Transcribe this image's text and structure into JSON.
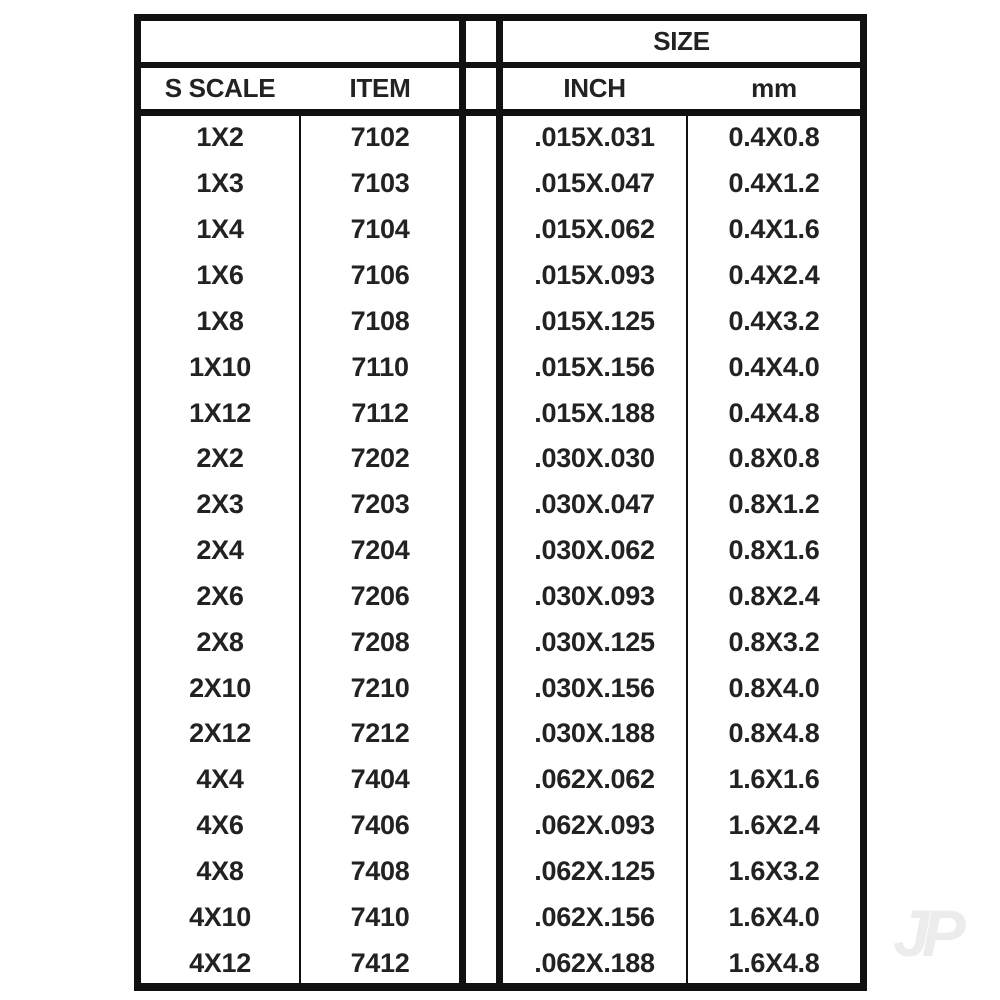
{
  "header": {
    "size_label": "SIZE",
    "columns": [
      "S SCALE",
      "ITEM",
      "INCH",
      "mm"
    ]
  },
  "rows": [
    [
      "1X2",
      "7102",
      ".015X.031",
      "0.4X0.8"
    ],
    [
      "1X3",
      "7103",
      ".015X.047",
      "0.4X1.2"
    ],
    [
      "1X4",
      "7104",
      ".015X.062",
      "0.4X1.6"
    ],
    [
      "1X6",
      "7106",
      ".015X.093",
      "0.4X2.4"
    ],
    [
      "1X8",
      "7108",
      ".015X.125",
      "0.4X3.2"
    ],
    [
      "1X10",
      "7110",
      ".015X.156",
      "0.4X4.0"
    ],
    [
      "1X12",
      "7112",
      ".015X.188",
      "0.4X4.8"
    ],
    [
      "2X2",
      "7202",
      ".030X.030",
      "0.8X0.8"
    ],
    [
      "2X3",
      "7203",
      ".030X.047",
      "0.8X1.2"
    ],
    [
      "2X4",
      "7204",
      ".030X.062",
      "0.8X1.6"
    ],
    [
      "2X6",
      "7206",
      ".030X.093",
      "0.8X2.4"
    ],
    [
      "2X8",
      "7208",
      ".030X.125",
      "0.8X3.2"
    ],
    [
      "2X10",
      "7210",
      ".030X.156",
      "0.8X4.0"
    ],
    [
      "2X12",
      "7212",
      ".030X.188",
      "0.8X4.8"
    ],
    [
      "4X4",
      "7404",
      ".062X.062",
      "1.6X1.6"
    ],
    [
      "4X6",
      "7406",
      ".062X.093",
      "1.6X2.4"
    ],
    [
      "4X8",
      "7408",
      ".062X.125",
      "1.6X3.2"
    ],
    [
      "4X10",
      "7410",
      ".062X.156",
      "1.6X4.0"
    ],
    [
      "4X12",
      "7412",
      ".062X.188",
      "1.6X4.8"
    ]
  ],
  "watermark": "JP"
}
